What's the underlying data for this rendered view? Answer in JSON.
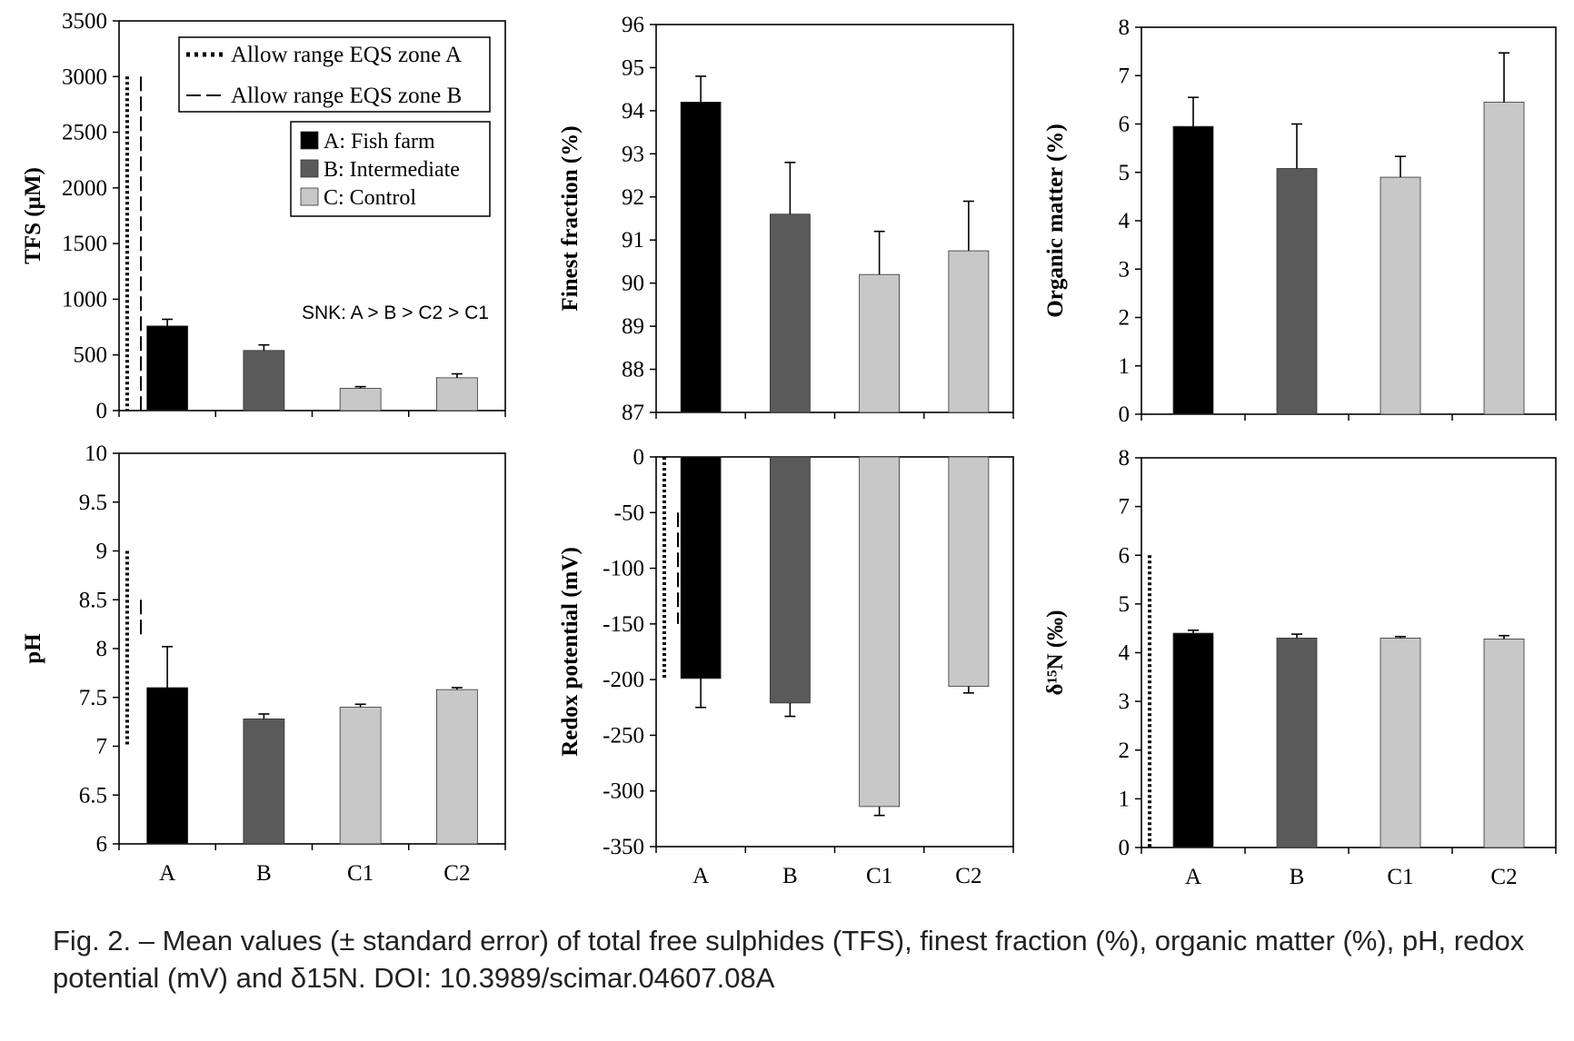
{
  "colors": {
    "A": "#000000",
    "B": "#5a5a5a",
    "C1": "#c8c8c8",
    "C2": "#c8c8c8"
  },
  "legends": {
    "eqs": [
      {
        "label": "Allow range EQS zone A",
        "style": "dotted"
      },
      {
        "label": "Allow range EQS zone B",
        "style": "dashed"
      }
    ],
    "stations": [
      {
        "label": "A: Fish farm",
        "color": "#000000"
      },
      {
        "label": "B: Intermediate",
        "color": "#5a5a5a"
      },
      {
        "label": "C: Control",
        "color": "#c8c8c8"
      }
    ]
  },
  "annotation": "SNK:  A > B > C2 > C1",
  "caption": "Fig. 2. – Mean values (± standard error) of total free sulphides (TFS), finest fraction (%), organic matter (%), pH, redox potential (mV) and δ15N. DOI: 10.3989/scimar.04607.08A",
  "chart_data": [
    {
      "type": "bar",
      "ylabel": "TFS (µM)",
      "categories": [
        "A",
        "B",
        "C1",
        "C2"
      ],
      "values": [
        760,
        540,
        200,
        295
      ],
      "errors": [
        60,
        50,
        15,
        35
      ],
      "ylim": [
        0,
        3500
      ],
      "yticks": [
        0,
        500,
        1000,
        1500,
        2000,
        2500,
        3000,
        3500
      ],
      "eqs_ranges": [
        {
          "zone": "A",
          "style": "dotted",
          "range": [
            0,
            3000
          ]
        },
        {
          "zone": "B",
          "style": "dashed",
          "range": [
            0,
            3000
          ]
        }
      ]
    },
    {
      "type": "bar",
      "ylabel": "Finest fraction (%)",
      "categories": [
        "A",
        "B",
        "C1",
        "C2"
      ],
      "values": [
        94.2,
        91.6,
        90.2,
        90.75
      ],
      "errors": [
        0.6,
        1.2,
        1.0,
        1.15
      ],
      "ylim": [
        87,
        96
      ],
      "yticks": [
        87,
        88,
        89,
        90,
        91,
        92,
        93,
        94,
        95,
        96
      ]
    },
    {
      "type": "bar",
      "ylabel": "Organic matter (%)",
      "categories": [
        "A",
        "B",
        "C1",
        "C2"
      ],
      "values": [
        5.95,
        5.08,
        4.9,
        6.45
      ],
      "errors": [
        0.6,
        0.92,
        0.43,
        1.02
      ],
      "ylim": [
        0,
        8
      ],
      "yticks": [
        0,
        1,
        2,
        3,
        4,
        5,
        6,
        7,
        8
      ]
    },
    {
      "type": "bar",
      "ylabel": "pH",
      "categories": [
        "A",
        "B",
        "C1",
        "C2"
      ],
      "values": [
        7.6,
        7.28,
        7.4,
        7.58
      ],
      "errors": [
        0.42,
        0.05,
        0.03,
        0.02
      ],
      "ylim": [
        6,
        10
      ],
      "yticks": [
        6,
        6.5,
        7,
        7.5,
        8,
        8.5,
        9,
        9.5,
        10
      ],
      "xticklabels": [
        "A",
        "B",
        "C1",
        "C2"
      ],
      "eqs_ranges": [
        {
          "zone": "A",
          "style": "dotted",
          "range": [
            7,
            9
          ]
        },
        {
          "zone": "B",
          "style": "dashed",
          "range": [
            8.1,
            8.5
          ]
        }
      ]
    },
    {
      "type": "bar",
      "ylabel": "Redox potential (mV)",
      "categories": [
        "A",
        "B",
        "C1",
        "C2"
      ],
      "values": [
        -199,
        -221,
        -314,
        -206
      ],
      "errors": [
        26,
        12,
        8,
        6
      ],
      "ylim": [
        -350,
        0
      ],
      "yticks": [
        -350,
        -300,
        -250,
        -200,
        -150,
        -100,
        -50,
        0
      ],
      "xticklabels": [
        "A",
        "B",
        "C1",
        "C2"
      ],
      "eqs_ranges": [
        {
          "zone": "A",
          "style": "dotted",
          "range": [
            -200,
            0
          ]
        },
        {
          "zone": "B",
          "style": "dashed",
          "range": [
            -150,
            -50
          ]
        }
      ]
    },
    {
      "type": "bar",
      "ylabel": "δ¹⁵N (‰)",
      "categories": [
        "A",
        "B",
        "C1",
        "C2"
      ],
      "values": [
        4.4,
        4.3,
        4.3,
        4.28
      ],
      "errors": [
        0.06,
        0.08,
        0.03,
        0.07
      ],
      "ylim": [
        0,
        8
      ],
      "yticks": [
        0,
        1,
        2,
        3,
        4,
        5,
        6,
        7,
        8
      ],
      "xticklabels": [
        "A",
        "B",
        "C1",
        "C2"
      ],
      "eqs_ranges": [
        {
          "zone": "A",
          "style": "dotted",
          "range": [
            0,
            6
          ]
        }
      ]
    }
  ]
}
